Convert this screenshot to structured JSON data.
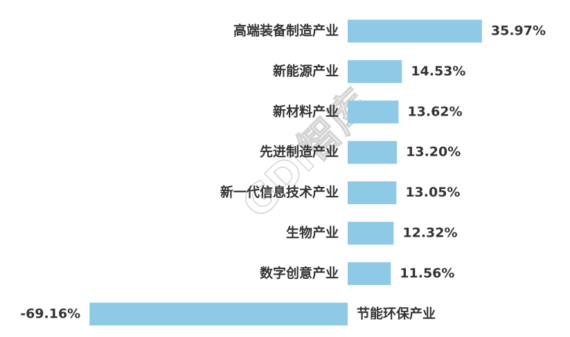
{
  "watermark": "GDi智库",
  "chart_data": {
    "type": "bar",
    "orientation": "horizontal",
    "categories": [
      "高端装备制造产业",
      "新能源产业",
      "新材料产业",
      "先进制造产业",
      "新一代信息技术产业",
      "生物产业",
      "数字创意产业",
      "节能环保产业"
    ],
    "values": [
      35.97,
      14.53,
      13.62,
      13.2,
      13.05,
      12.32,
      11.56,
      -69.16
    ],
    "value_labels": [
      "35.97%",
      "14.53%",
      "13.62%",
      "13.20%",
      "13.05%",
      "12.32%",
      "11.56%",
      "-69.16%"
    ],
    "bar_color": "#8ecae6",
    "title": "",
    "xlabel": "",
    "ylabel": "",
    "grid": false
  }
}
